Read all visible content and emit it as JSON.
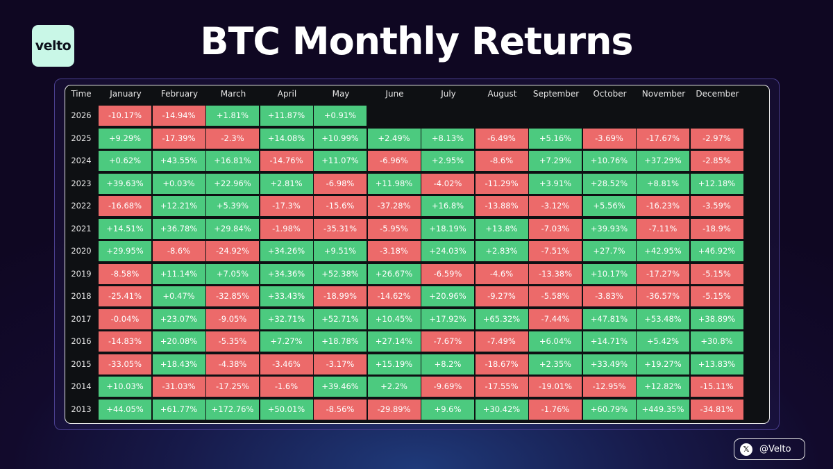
{
  "brand": {
    "logo_text": "velto"
  },
  "header": {
    "title": "BTC Monthly Returns"
  },
  "footer": {
    "handle": "@Velto",
    "handle_icon": "x-logo-icon"
  },
  "colors": {
    "positive": "#4cca7f",
    "negative": "#ec6a6a"
  },
  "chart_data": {
    "type": "heatmap",
    "title": "BTC Monthly Returns",
    "row_header": "Time",
    "columns": [
      "January",
      "February",
      "March",
      "April",
      "May",
      "June",
      "July",
      "August",
      "September",
      "October",
      "November",
      "December"
    ],
    "rows": [
      {
        "year": "2026",
        "values": [
          "-10.17%",
          "-14.94%",
          "+1.81%",
          "+11.87%",
          "+0.91%",
          null,
          null,
          null,
          null,
          null,
          null,
          null
        ]
      },
      {
        "year": "2025",
        "values": [
          "+9.29%",
          "-17.39%",
          "-2.3%",
          "+14.08%",
          "+10.99%",
          "+2.49%",
          "+8.13%",
          "-6.49%",
          "+5.16%",
          "-3.69%",
          "-17.67%",
          "-2.97%"
        ]
      },
      {
        "year": "2024",
        "values": [
          "+0.62%",
          "+43.55%",
          "+16.81%",
          "-14.76%",
          "+11.07%",
          "-6.96%",
          "+2.95%",
          "-8.6%",
          "+7.29%",
          "+10.76%",
          "+37.29%",
          "-2.85%"
        ]
      },
      {
        "year": "2023",
        "values": [
          "+39.63%",
          "+0.03%",
          "+22.96%",
          "+2.81%",
          "-6.98%",
          "+11.98%",
          "-4.02%",
          "-11.29%",
          "+3.91%",
          "+28.52%",
          "+8.81%",
          "+12.18%"
        ]
      },
      {
        "year": "2022",
        "values": [
          "-16.68%",
          "+12.21%",
          "+5.39%",
          "-17.3%",
          "-15.6%",
          "-37.28%",
          "+16.8%",
          "-13.88%",
          "-3.12%",
          "+5.56%",
          "-16.23%",
          "-3.59%"
        ]
      },
      {
        "year": "2021",
        "values": [
          "+14.51%",
          "+36.78%",
          "+29.84%",
          "-1.98%",
          "-35.31%",
          "-5.95%",
          "+18.19%",
          "+13.8%",
          "-7.03%",
          "+39.93%",
          "-7.11%",
          "-18.9%"
        ]
      },
      {
        "year": "2020",
        "values": [
          "+29.95%",
          "-8.6%",
          "-24.92%",
          "+34.26%",
          "+9.51%",
          "-3.18%",
          "+24.03%",
          "+2.83%",
          "-7.51%",
          "+27.7%",
          "+42.95%",
          "+46.92%"
        ]
      },
      {
        "year": "2019",
        "values": [
          "-8.58%",
          "+11.14%",
          "+7.05%",
          "+34.36%",
          "+52.38%",
          "+26.67%",
          "-6.59%",
          "-4.6%",
          "-13.38%",
          "+10.17%",
          "-17.27%",
          "-5.15%"
        ]
      },
      {
        "year": "2018",
        "values": [
          "-25.41%",
          "+0.47%",
          "-32.85%",
          "+33.43%",
          "-18.99%",
          "-14.62%",
          "+20.96%",
          "-9.27%",
          "-5.58%",
          "-3.83%",
          "-36.57%",
          "-5.15%"
        ]
      },
      {
        "year": "2017",
        "values": [
          "-0.04%",
          "+23.07%",
          "-9.05%",
          "+32.71%",
          "+52.71%",
          "+10.45%",
          "+17.92%",
          "+65.32%",
          "-7.44%",
          "+47.81%",
          "+53.48%",
          "+38.89%"
        ]
      },
      {
        "year": "2016",
        "values": [
          "-14.83%",
          "+20.08%",
          "-5.35%",
          "+7.27%",
          "+18.78%",
          "+27.14%",
          "-7.67%",
          "-7.49%",
          "+6.04%",
          "+14.71%",
          "+5.42%",
          "+30.8%"
        ]
      },
      {
        "year": "2015",
        "values": [
          "-33.05%",
          "+18.43%",
          "-4.38%",
          "-3.46%",
          "-3.17%",
          "+15.19%",
          "+8.2%",
          "-18.67%",
          "+2.35%",
          "+33.49%",
          "+19.27%",
          "+13.83%"
        ]
      },
      {
        "year": "2014",
        "values": [
          "+10.03%",
          "-31.03%",
          "-17.25%",
          "-1.6%",
          "+39.46%",
          "+2.2%",
          "-9.69%",
          "-17.55%",
          "-19.01%",
          "-12.95%",
          "+12.82%",
          "-15.11%"
        ]
      },
      {
        "year": "2013",
        "values": [
          "+44.05%",
          "+61.77%",
          "+172.76%",
          "+50.01%",
          "-8.56%",
          "-29.89%",
          "+9.6%",
          "+30.42%",
          "-1.76%",
          "+60.79%",
          "+449.35%",
          "-34.81%"
        ]
      }
    ]
  }
}
